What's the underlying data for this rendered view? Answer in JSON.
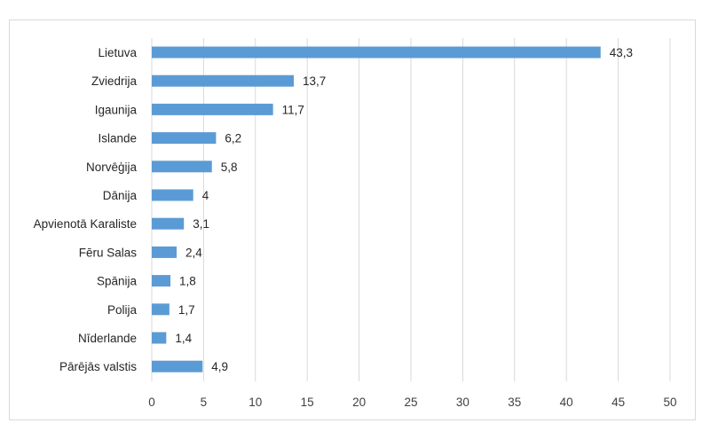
{
  "chart_data": {
    "type": "bar",
    "orientation": "horizontal",
    "categories": [
      "Lietuva",
      "Zviedrija",
      "Igaunija",
      "Islande",
      "Norvēģija",
      "Dānija",
      "Apvienotā Karaliste",
      "Fēru Salas",
      "Spānija",
      "Polija",
      "Nīderlande",
      "Pārējās valstis"
    ],
    "values": [
      43.3,
      13.7,
      11.7,
      6.2,
      5.8,
      4,
      3.1,
      2.4,
      1.8,
      1.7,
      1.4,
      4.9
    ],
    "value_labels": [
      "43,3",
      "13,7",
      "11,7",
      "6,2",
      "5,8",
      "4",
      "3,1",
      "2,4",
      "1,8",
      "1,7",
      "1,4",
      "4,9"
    ],
    "x_ticks": [
      "0",
      "5",
      "10",
      "15",
      "20",
      "25",
      "30",
      "35",
      "40",
      "45",
      "50"
    ],
    "xlim": [
      0,
      50
    ],
    "grid": true,
    "legend": "none",
    "title": "",
    "xlabel": "",
    "ylabel": "",
    "bar_color": "#5b9bd5",
    "grid_color": "#d9d9d9"
  }
}
